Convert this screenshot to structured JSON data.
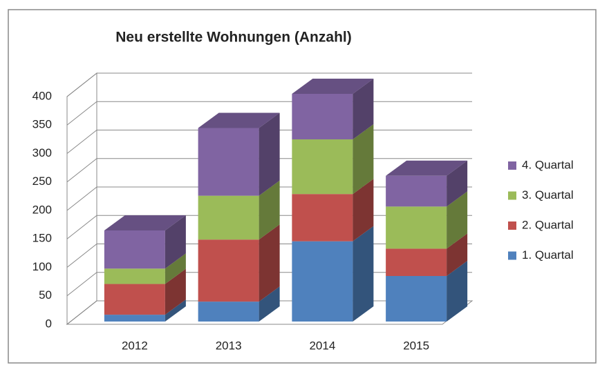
{
  "chart_data": {
    "type": "bar3d_stacked",
    "title": "Neu erstellte Wohnungen (Anzahl)",
    "categories": [
      "2012",
      "2013",
      "2014",
      "2015"
    ],
    "series": [
      {
        "name": "1. Quartal",
        "color": "#4f81bd",
        "values": [
          12,
          35,
          141,
          80
        ]
      },
      {
        "name": "2. Quartal",
        "color": "#c0504d",
        "values": [
          54,
          109,
          83,
          48
        ]
      },
      {
        "name": "3. Quartal",
        "color": "#9bbb59",
        "values": [
          27,
          77,
          96,
          74
        ]
      },
      {
        "name": "4. Quartal",
        "color": "#8064a2",
        "values": [
          67,
          119,
          80,
          54
        ]
      }
    ],
    "ylim": [
      0,
      400
    ],
    "yticks": [
      0,
      50,
      100,
      150,
      200,
      250,
      300,
      350,
      400
    ],
    "grid": true,
    "legend": "right"
  }
}
